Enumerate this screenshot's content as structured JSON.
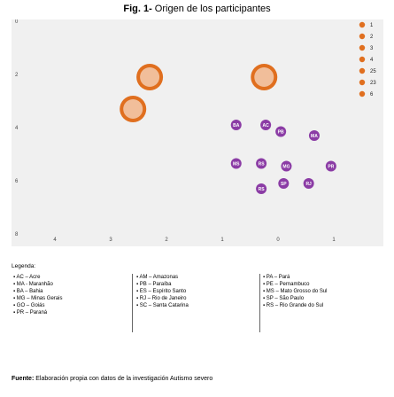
{
  "title": {
    "prefix": "Fig. 1-",
    "text": " Origen de los participantes"
  },
  "chart_data": {
    "type": "scatter",
    "title": "Origen de los participantes",
    "x_ticks": [
      "4",
      "3",
      "2",
      "1",
      "0",
      "1"
    ],
    "y_ticks": [
      "0",
      "2",
      "4",
      "6",
      "8"
    ],
    "colors": {
      "orange": "#e06f1f",
      "purple": "#8b3ca5",
      "green": "#7ab83a",
      "frame": "#f0f0f0"
    },
    "bubbles": [
      {
        "x": -2.6,
        "y": 3.3,
        "size": 6,
        "color": "orange",
        "label": ""
      },
      {
        "x": -2.3,
        "y": 2.1,
        "size": 6,
        "color": "orange",
        "label": ""
      },
      {
        "x": -0.25,
        "y": 2.1,
        "size": 6,
        "color": "orange",
        "label": ""
      },
      {
        "x": -0.75,
        "y": 3.9,
        "size": 1,
        "color": "purple",
        "label": "BA"
      },
      {
        "x": -0.22,
        "y": 3.9,
        "size": 1,
        "color": "purple",
        "label": "AC"
      },
      {
        "x": 0.05,
        "y": 4.15,
        "size": 1,
        "color": "purple",
        "label": "PB"
      },
      {
        "x": 0.65,
        "y": 4.3,
        "size": 1,
        "color": "purple",
        "label": "MA"
      },
      {
        "x": -0.75,
        "y": 5.35,
        "size": 1,
        "color": "purple",
        "label": "MS"
      },
      {
        "x": -0.3,
        "y": 5.35,
        "size": 1,
        "color": "purple",
        "label": "RS"
      },
      {
        "x": 0.15,
        "y": 5.45,
        "size": 1,
        "color": "purple",
        "label": "MG"
      },
      {
        "x": 0.95,
        "y": 5.45,
        "size": 1,
        "color": "purple",
        "label": "PR"
      },
      {
        "x": -0.3,
        "y": 6.3,
        "size": 1,
        "color": "purple",
        "label": "RS"
      },
      {
        "x": 0.1,
        "y": 6.1,
        "size": 1,
        "color": "purple",
        "label": "SP"
      },
      {
        "x": 0.55,
        "y": 6.1,
        "size": 1,
        "color": "purple",
        "label": "RJ"
      }
    ],
    "legend": [
      {
        "value": "1"
      },
      {
        "value": "2"
      },
      {
        "value": "3"
      },
      {
        "value": "4"
      },
      {
        "value": "25"
      },
      {
        "value": "23"
      },
      {
        "value": "6"
      }
    ]
  },
  "legend_table": {
    "title": "Legenda:",
    "col1": [
      "AC – Acre",
      "MA - Maranhão",
      "BA – Bahia",
      "MG – Minas Gerais",
      "GO – Goiás",
      "PR – Paraná"
    ],
    "col2": [
      "AM – Amazonas",
      "PB – Paraíba",
      "ES – Espírito Santo",
      "RJ – Rio de Janeiro",
      "SC – Santa Catarina"
    ],
    "col3": [
      "PA – Pará",
      "PE – Pernambuco",
      "MS – Mato Grosso do Sul",
      "SP – São Paulo",
      "RS – Rio Grande do Sul"
    ]
  },
  "source": {
    "label": "Fuente:",
    "text": " Elaboración propia con datos de la investigación Autismo severo"
  }
}
